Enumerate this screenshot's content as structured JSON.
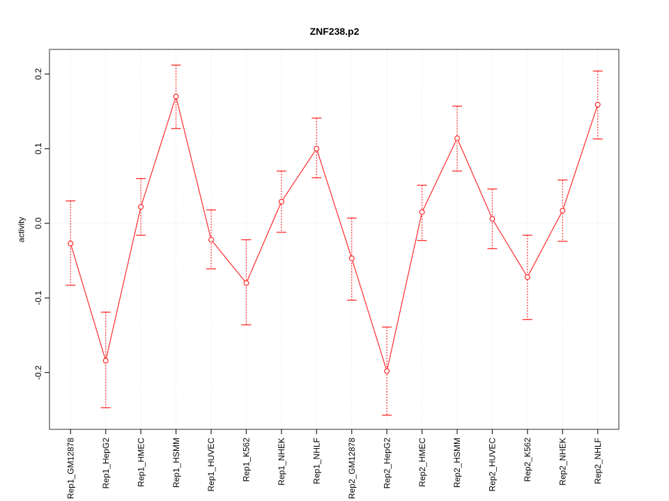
{
  "chart_data": {
    "type": "line",
    "title": "ZNF238.p2",
    "xlabel": "",
    "ylabel": "activity",
    "categories": [
      "Rep1_GM12878",
      "Rep1_HepG2",
      "Rep1_HMEC",
      "Rep1_HSMM",
      "Rep1_HUVEC",
      "Rep1_K562",
      "Rep1_NHEK",
      "Rep1_NHLF",
      "Rep2_GM12878",
      "Rep2_HepG2",
      "Rep2_HMEC",
      "Rep2_HSMM",
      "Rep2_HUVEC",
      "Rep2_K562",
      "Rep2_NHEK",
      "Rep2_NHLF"
    ],
    "series": [
      {
        "name": "activity",
        "values": [
          -0.027,
          -0.184,
          0.022,
          0.17,
          -0.022,
          -0.08,
          0.029,
          0.1,
          -0.047,
          -0.198,
          0.015,
          0.114,
          0.006,
          -0.072,
          0.017,
          0.159
        ],
        "lower": [
          -0.083,
          -0.247,
          -0.016,
          0.127,
          -0.061,
          -0.136,
          -0.012,
          0.061,
          -0.103,
          -0.257,
          -0.023,
          0.07,
          -0.034,
          -0.129,
          -0.024,
          0.113
        ],
        "upper": [
          0.03,
          -0.119,
          0.06,
          0.212,
          0.018,
          -0.022,
          0.07,
          0.141,
          0.007,
          -0.139,
          0.051,
          0.157,
          0.046,
          -0.016,
          0.058,
          0.204
        ]
      }
    ],
    "yticks": [
      0.2,
      0.1,
      0.0,
      -0.1,
      -0.2
    ],
    "ytick_labels": [
      "0.2",
      "0.1",
      "0.0",
      "-0.1",
      "-0.2"
    ],
    "ylim": [
      -0.276,
      0.233
    ],
    "layout": {
      "legend": "none",
      "grid_vertical_dotted_per_category": true,
      "zero_line_dotted": true,
      "x_labels_rotated_90": true,
      "y_labels_rotated_90": true
    },
    "colors": {
      "series": "#ff2a2a",
      "error_bar": "#ff2a2a",
      "grid": "#dcdcdc",
      "zero_line": "#dcdcdc",
      "frame": "#4d4d4d",
      "tick": "#222222",
      "text": "#000000",
      "background": "#ffffff"
    }
  }
}
